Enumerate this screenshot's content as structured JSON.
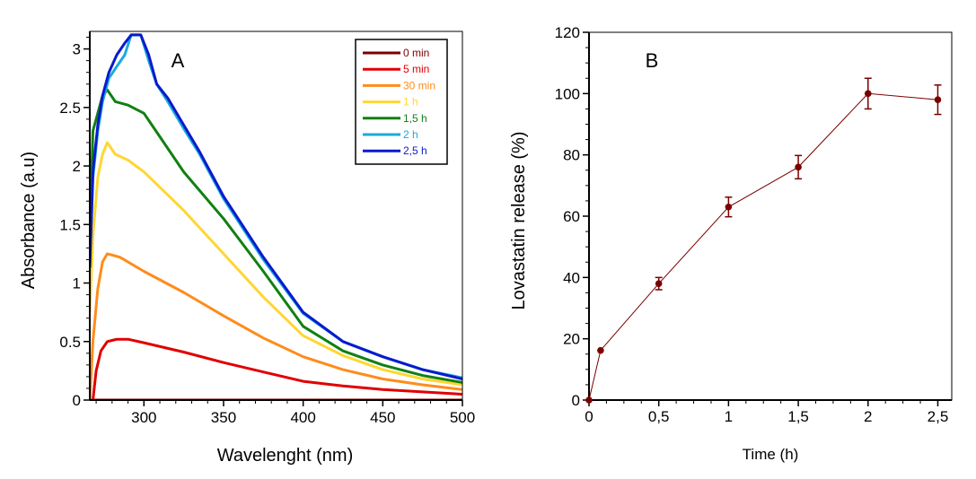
{
  "chart_data": [
    {
      "type": "line",
      "panel": "A",
      "title": "",
      "panel_label": "A",
      "xlabel": "Wavelenght (nm)",
      "ylabel": "Absorbance (a.u)",
      "xlim": [
        266,
        500
      ],
      "ylim": [
        0,
        3.15
      ],
      "xticks": [
        300,
        350,
        400,
        450,
        500
      ],
      "xtick_labels": [
        "300",
        "350",
        "400",
        "450",
        "500"
      ],
      "yticks": [
        0,
        0.5,
        1,
        1.5,
        2,
        2.5,
        3
      ],
      "ytick_labels": [
        "0",
        "0.5",
        "1",
        "1.5",
        "2",
        "2.5",
        "3"
      ],
      "grid": false,
      "legend_position": "top-right",
      "series": [
        {
          "name": "0 min",
          "color": "#7a0000",
          "x": [
            266,
            300,
            350,
            400,
            450,
            500
          ],
          "y": [
            0,
            0,
            0,
            0,
            0,
            0
          ]
        },
        {
          "name": "5 min",
          "color": "#e00000",
          "x": [
            268,
            270,
            273,
            277,
            283,
            290,
            300,
            325,
            350,
            375,
            400,
            425,
            450,
            475,
            500
          ],
          "y": [
            0,
            0.25,
            0.42,
            0.5,
            0.52,
            0.52,
            0.49,
            0.41,
            0.32,
            0.24,
            0.16,
            0.12,
            0.09,
            0.07,
            0.05
          ]
        },
        {
          "name": "30 min",
          "color": "#ff8c1a",
          "x": [
            266,
            268,
            271,
            274,
            277,
            285,
            300,
            325,
            350,
            375,
            400,
            425,
            450,
            475,
            500
          ],
          "y": [
            0,
            0.5,
            0.95,
            1.18,
            1.25,
            1.22,
            1.1,
            0.92,
            0.72,
            0.53,
            0.37,
            0.26,
            0.18,
            0.13,
            0.09
          ]
        },
        {
          "name": "1 h",
          "color": "#ffd633",
          "x": [
            266,
            268,
            271,
            274,
            277,
            282,
            290,
            300,
            325,
            350,
            375,
            400,
            425,
            450,
            475,
            500
          ],
          "y": [
            0.75,
            1.4,
            1.9,
            2.1,
            2.2,
            2.1,
            2.05,
            1.95,
            1.62,
            1.25,
            0.88,
            0.55,
            0.38,
            0.26,
            0.18,
            0.13
          ]
        },
        {
          "name": "1,5 h",
          "color": "#118011",
          "x": [
            266,
            268,
            271,
            274,
            277,
            282,
            290,
            300,
            310,
            325,
            350,
            375,
            400,
            425,
            450,
            475,
            500
          ],
          "y": [
            1.4,
            2.3,
            2.45,
            2.6,
            2.65,
            2.55,
            2.52,
            2.45,
            2.25,
            1.95,
            1.55,
            1.1,
            0.63,
            0.42,
            0.3,
            0.21,
            0.15
          ]
        },
        {
          "name": "2 h",
          "color": "#1aaae0",
          "x": [
            266,
            268,
            271,
            274,
            278,
            283,
            288,
            292,
            298,
            303,
            308,
            315,
            325,
            335,
            350,
            375,
            400,
            425,
            450,
            475,
            500
          ],
          "y": [
            1.15,
            1.9,
            2.3,
            2.55,
            2.75,
            2.85,
            2.95,
            3.12,
            3.12,
            2.9,
            2.7,
            2.55,
            2.32,
            2.1,
            1.72,
            1.2,
            0.74,
            0.5,
            0.37,
            0.26,
            0.19
          ]
        },
        {
          "name": "2,5 h",
          "color": "#0a1acc",
          "x": [
            266,
            268,
            271,
            274,
            278,
            283,
            288,
            292,
            298,
            303,
            308,
            315,
            325,
            335,
            350,
            375,
            400,
            425,
            450,
            475,
            500
          ],
          "y": [
            1.13,
            1.95,
            2.35,
            2.6,
            2.8,
            2.95,
            3.05,
            3.12,
            3.12,
            2.95,
            2.7,
            2.58,
            2.35,
            2.12,
            1.74,
            1.22,
            0.75,
            0.5,
            0.37,
            0.26,
            0.18
          ]
        }
      ]
    },
    {
      "type": "line",
      "panel": "B",
      "title": "",
      "panel_label": "B",
      "xlabel": "Time (h)",
      "ylabel": "Lovastatin release (%)",
      "xlim": [
        0,
        2.6
      ],
      "ylim": [
        0,
        120
      ],
      "xticks": [
        0,
        0.5,
        1,
        1.5,
        2,
        2.5
      ],
      "xtick_labels": [
        "0",
        "0,5",
        "1",
        "1,5",
        "2",
        "2,5"
      ],
      "yticks": [
        0,
        20,
        40,
        60,
        80,
        100,
        120
      ],
      "ytick_labels": [
        "0",
        "20",
        "40",
        "60",
        "80",
        "100",
        "120"
      ],
      "grid": false,
      "series": [
        {
          "name": "Lovastatin release",
          "color": "#7a0000",
          "x": [
            0,
            0.083,
            0.5,
            1,
            1.5,
            2,
            2.5
          ],
          "y": [
            0,
            16.2,
            38,
            63,
            76,
            100,
            98
          ],
          "error": [
            0,
            0,
            2,
            3.2,
            3.8,
            5,
            4.8
          ]
        }
      ]
    }
  ]
}
